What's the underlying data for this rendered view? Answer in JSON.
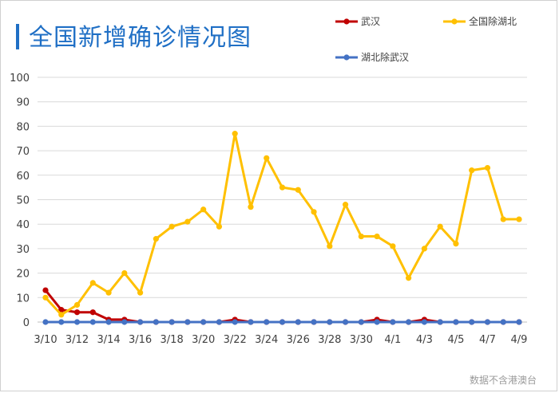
{
  "title": "全国新增确诊情况图",
  "footnote": "数据不含港澳台",
  "chart_data": {
    "type": "line",
    "title": "全国新增确诊情况图",
    "xlabel": "",
    "ylabel": "",
    "ylim": [
      0,
      100
    ],
    "yticks": [
      0,
      10,
      20,
      30,
      40,
      50,
      60,
      70,
      80,
      90,
      100
    ],
    "grid": true,
    "legend": "top-right",
    "x": [
      "3/10",
      "3/11",
      "3/12",
      "3/13",
      "3/14",
      "3/15",
      "3/16",
      "3/17",
      "3/18",
      "3/19",
      "3/20",
      "3/21",
      "3/22",
      "3/23",
      "3/24",
      "3/25",
      "3/26",
      "3/27",
      "3/28",
      "3/29",
      "3/30",
      "3/31",
      "4/1",
      "4/2",
      "4/3",
      "4/4",
      "4/5",
      "4/6",
      "4/7",
      "4/8",
      "4/9"
    ],
    "xtick_labels": [
      "3/10",
      "3/12",
      "3/14",
      "3/16",
      "3/18",
      "3/20",
      "3/22",
      "3/24",
      "3/26",
      "3/28",
      "3/30",
      "4/1",
      "4/3",
      "4/5",
      "4/7",
      "4/9"
    ],
    "series": [
      {
        "name": "武汉",
        "color": "#c00000",
        "values": [
          13,
          5,
          4,
          4,
          1,
          1,
          0,
          0,
          0,
          0,
          0,
          0,
          1,
          0,
          0,
          0,
          0,
          0,
          0,
          0,
          0,
          1,
          0,
          0,
          1,
          0,
          0,
          0,
          0,
          0,
          0
        ]
      },
      {
        "name": "全国除湖北",
        "color": "#ffc000",
        "values": [
          10,
          3,
          7,
          16,
          12,
          20,
          12,
          34,
          39,
          41,
          46,
          39,
          77,
          47,
          67,
          55,
          54,
          45,
          31,
          48,
          35,
          35,
          31,
          18,
          30,
          39,
          32,
          62,
          63,
          42,
          42
        ]
      },
      {
        "name": "湖北除武汉",
        "color": "#4472c4",
        "values": [
          0,
          0,
          0,
          0,
          0,
          0,
          0,
          0,
          0,
          0,
          0,
          0,
          0,
          0,
          0,
          0,
          0,
          0,
          0,
          0,
          0,
          0,
          0,
          0,
          0,
          0,
          0,
          0,
          0,
          0,
          0
        ]
      }
    ]
  }
}
